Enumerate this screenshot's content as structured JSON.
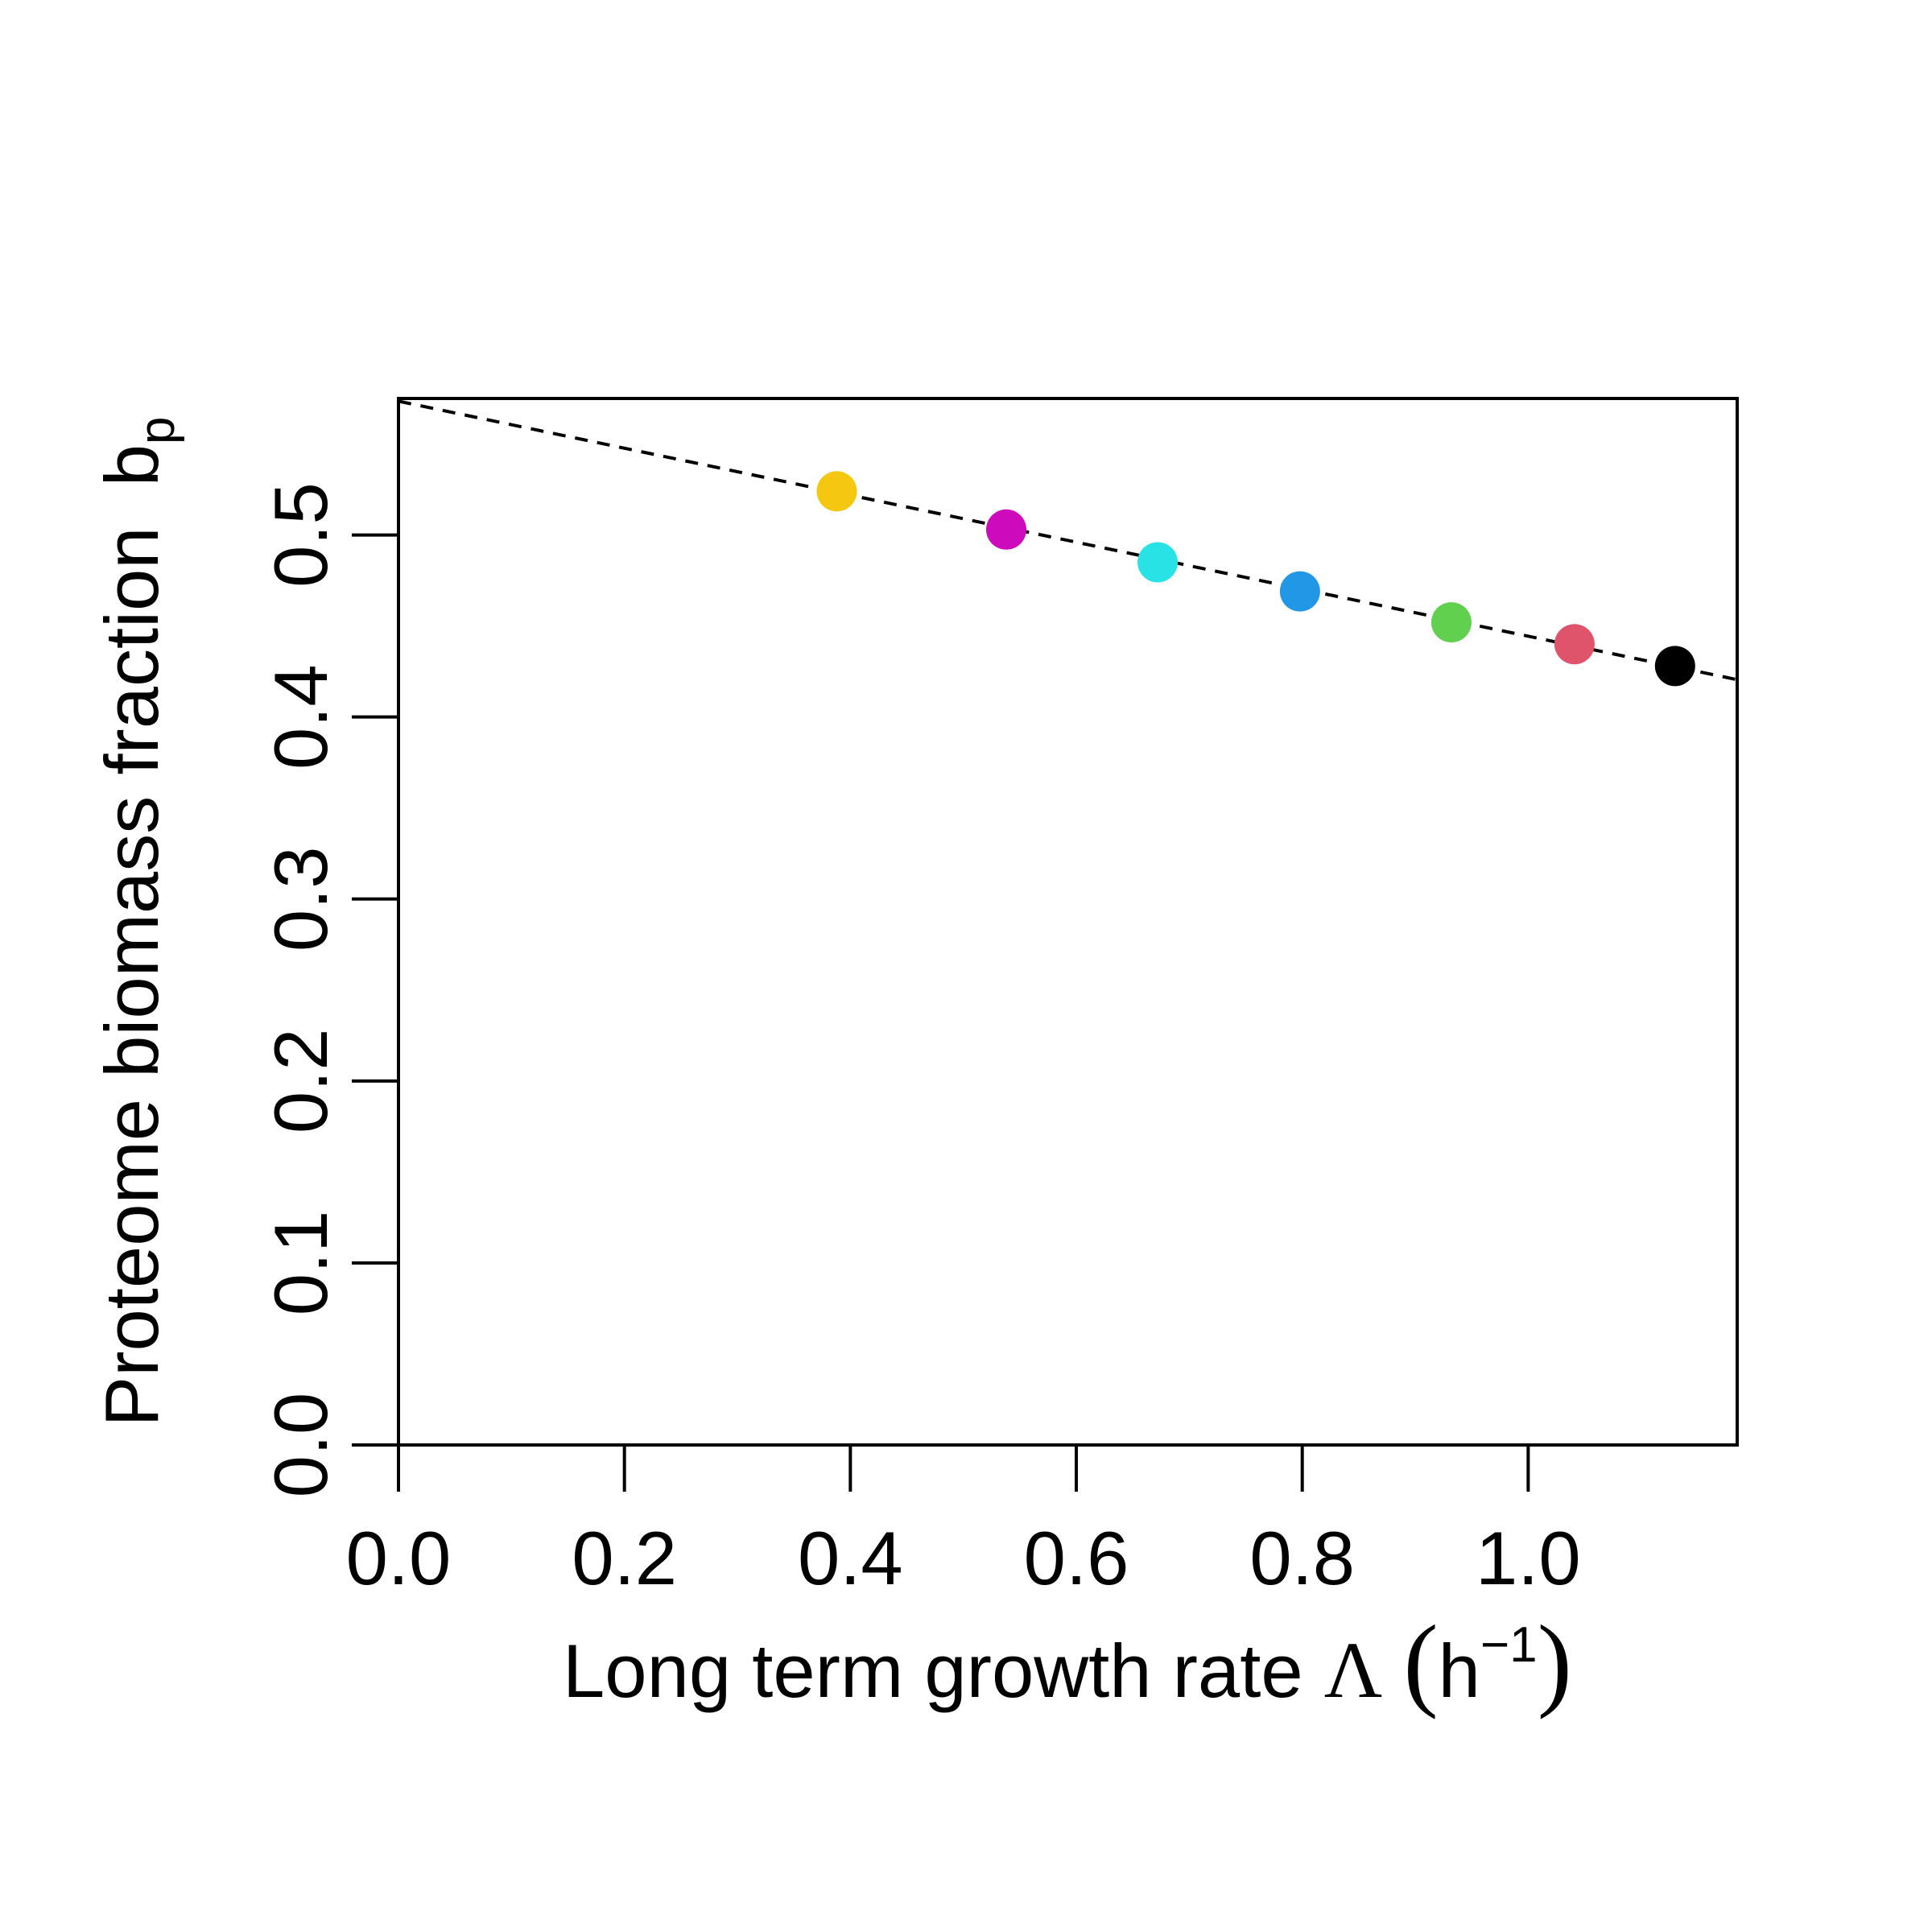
{
  "chart_data": {
    "type": "scatter",
    "xlabel": "Long term growth rate",
    "xlabel_symbol": "Λ",
    "xlabel_unit_base": "h",
    "xlabel_unit_exp": "−1",
    "ylabel": "Proteome biomass fraction",
    "ylabel_symbol": "b",
    "ylabel_subscript": "p",
    "xlim": [
      0.0,
      1.185
    ],
    "ylim": [
      0.0,
      0.575
    ],
    "x_ticks": [
      0.0,
      0.2,
      0.4,
      0.6,
      0.8,
      1.0
    ],
    "x_tick_labels": [
      "0.0",
      "0.2",
      "0.4",
      "0.6",
      "0.8",
      "1.0"
    ],
    "y_ticks": [
      0.0,
      0.1,
      0.2,
      0.3,
      0.4,
      0.5
    ],
    "y_tick_labels": [
      "0.0",
      "0.1",
      "0.2",
      "0.3",
      "0.4",
      "0.5"
    ],
    "grid": false,
    "points": [
      {
        "x": 0.388,
        "y": 0.524,
        "color": "#F5C710"
      },
      {
        "x": 0.538,
        "y": 0.503,
        "color": "#CD0BBC"
      },
      {
        "x": 0.672,
        "y": 0.485,
        "color": "#28E2E5"
      },
      {
        "x": 0.798,
        "y": 0.469,
        "color": "#2297E6"
      },
      {
        "x": 0.932,
        "y": 0.452,
        "color": "#61D04F"
      },
      {
        "x": 1.041,
        "y": 0.44,
        "color": "#DF536B"
      },
      {
        "x": 1.13,
        "y": 0.428,
        "color": "#000000"
      }
    ],
    "fit_line": {
      "style": "dashed",
      "color": "#000000",
      "x": [
        0.0,
        1.185
      ],
      "y": [
        0.5735,
        0.4205
      ]
    }
  }
}
